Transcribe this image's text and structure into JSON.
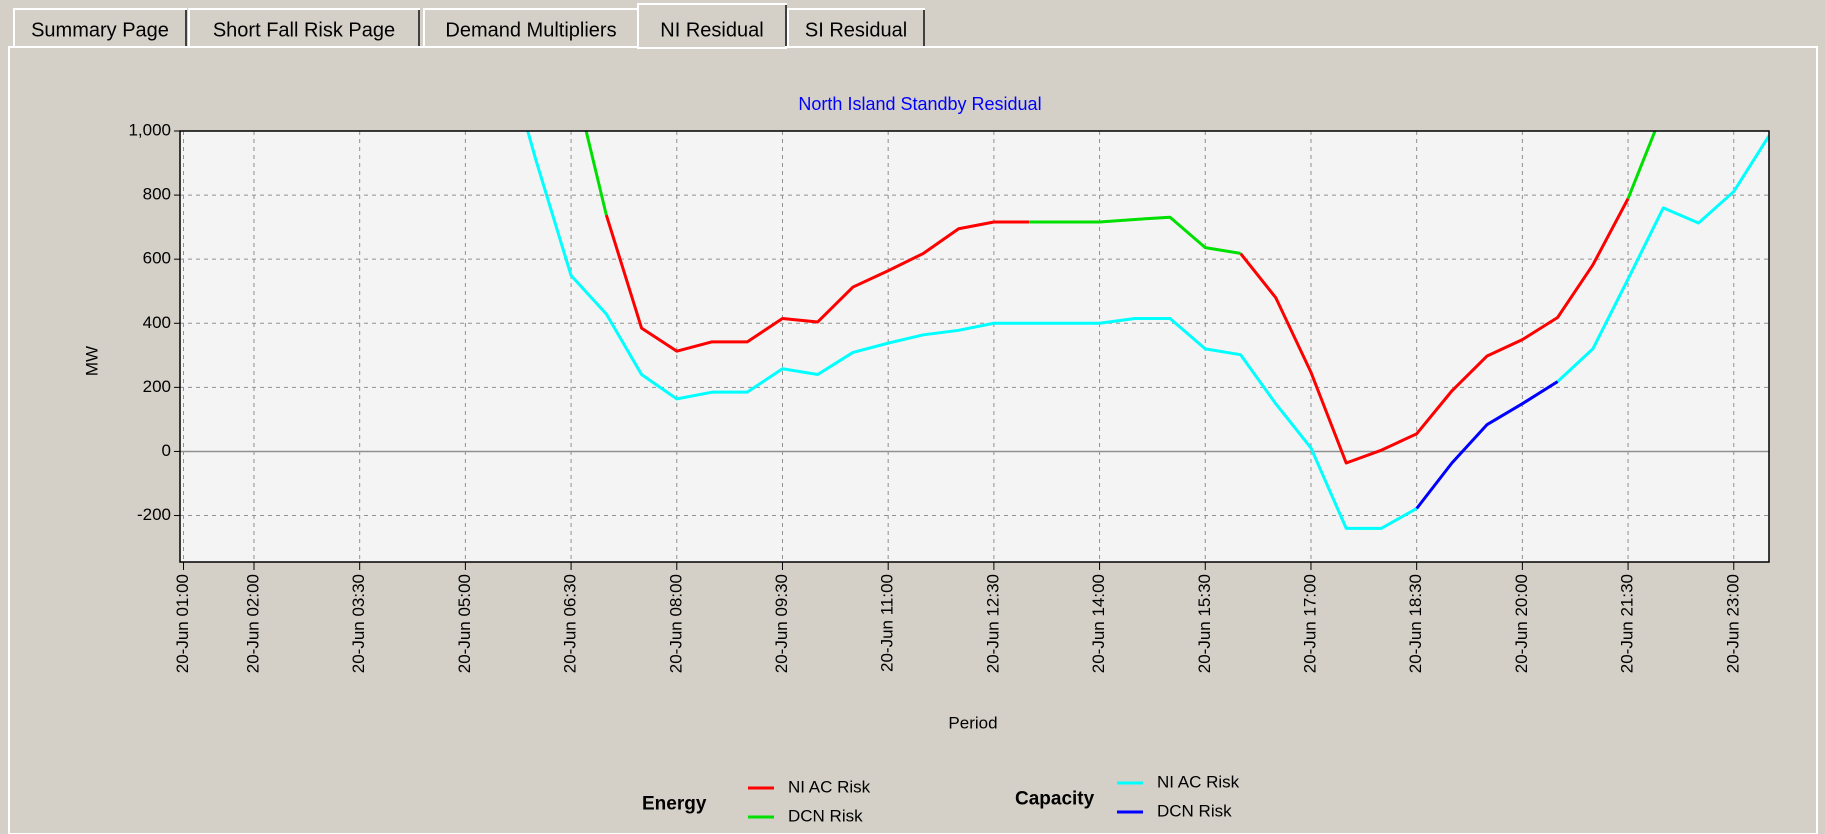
{
  "tabs": [
    "Summary Page",
    "Short Fall Risk Page",
    "Demand Multipliers",
    "NI Residual",
    "SI Residual"
  ],
  "selected_tab": 3,
  "chart_data": {
    "type": "line",
    "title": "North Island Standby Residual",
    "x_label": "Period",
    "y_label": "MW",
    "x": [
      5.5,
      6,
      6.5,
      7,
      7.5,
      8,
      8.5,
      9,
      9.5,
      10,
      10.5,
      11,
      11.5,
      12,
      12.5,
      13,
      13.5,
      14,
      14.5,
      15,
      15.5,
      16,
      16.5,
      17,
      17.5,
      18,
      18.5,
      19,
      19.5,
      20,
      20.5,
      21,
      21.5,
      22,
      22.5,
      23,
      23.5
    ],
    "series": [
      {
        "group": "Energy",
        "name": "NI AC Risk",
        "color": "#ff0000",
        "values": [
          null,
          null,
          null,
          738,
          385,
          313,
          342,
          342,
          415,
          404,
          513,
          564,
          618,
          695,
          716,
          716,
          null,
          null,
          null,
          null,
          null,
          618,
          480,
          247,
          -36,
          4,
          55,
          189,
          298,
          349,
          418,
          582,
          789,
          null,
          null,
          null,
          null
        ]
      },
      {
        "group": "Energy",
        "name": "DCN Risk",
        "color": "#00e000",
        "values": [
          null,
          null,
          1196,
          738,
          null,
          null,
          null,
          null,
          null,
          null,
          null,
          null,
          null,
          null,
          null,
          716,
          716,
          716,
          724,
          731,
          636,
          618,
          null,
          null,
          null,
          null,
          null,
          null,
          null,
          null,
          null,
          null,
          789,
          1065,
          null,
          null,
          null
        ]
      },
      {
        "group": "Capacity",
        "name": "NI AC Risk",
        "color": "#00ffff",
        "values": [
          1300,
          910,
          549,
          429,
          240,
          164,
          185,
          185,
          258,
          240,
          309,
          338,
          364,
          378,
          400,
          400,
          400,
          400,
          415,
          415,
          320,
          302,
          149,
          11,
          -240,
          -240,
          -178,
          null,
          null,
          null,
          218,
          320,
          538,
          760,
          713,
          811,
          985
        ]
      },
      {
        "group": "Capacity",
        "name": "DCN Risk",
        "color": "#0000ff",
        "values": [
          null,
          null,
          null,
          null,
          null,
          null,
          null,
          null,
          null,
          null,
          null,
          null,
          null,
          null,
          null,
          null,
          null,
          null,
          null,
          null,
          null,
          null,
          null,
          null,
          null,
          null,
          -178,
          -36,
          84,
          149,
          218,
          null,
          null,
          null,
          null,
          null,
          null
        ]
      }
    ],
    "xlim": [
      0.95,
      23.5
    ],
    "xticks": [
      {
        "value": 1,
        "label": "20-Jun 01:00"
      },
      {
        "value": 2,
        "label": "20-Jun 02:00"
      },
      {
        "value": 3.5,
        "label": "20-Jun 03:30"
      },
      {
        "value": 5,
        "label": "20-Jun 05:00"
      },
      {
        "value": 6.5,
        "label": "20-Jun 06:30"
      },
      {
        "value": 8,
        "label": "20-Jun 08:00"
      },
      {
        "value": 9.5,
        "label": "20-Jun 09:30"
      },
      {
        "value": 11,
        "label": "20-Jun 11:00"
      },
      {
        "value": 12.5,
        "label": "20-Jun 12:30"
      },
      {
        "value": 14,
        "label": "20-Jun 14:00"
      },
      {
        "value": 15.5,
        "label": "20-Jun 15:30"
      },
      {
        "value": 17,
        "label": "20-Jun 17:00"
      },
      {
        "value": 18.5,
        "label": "20-Jun 18:30"
      },
      {
        "value": 20,
        "label": "20-Jun 20:00"
      },
      {
        "value": 21.5,
        "label": "20-Jun 21:30"
      },
      {
        "value": 23,
        "label": "20-Jun 23:00"
      }
    ],
    "ylim": [
      -345,
      1000
    ],
    "yticks": [
      -200,
      0,
      200,
      400,
      600,
      800,
      {
        "value": 1000,
        "label": "1,000"
      }
    ],
    "grid": true
  }
}
